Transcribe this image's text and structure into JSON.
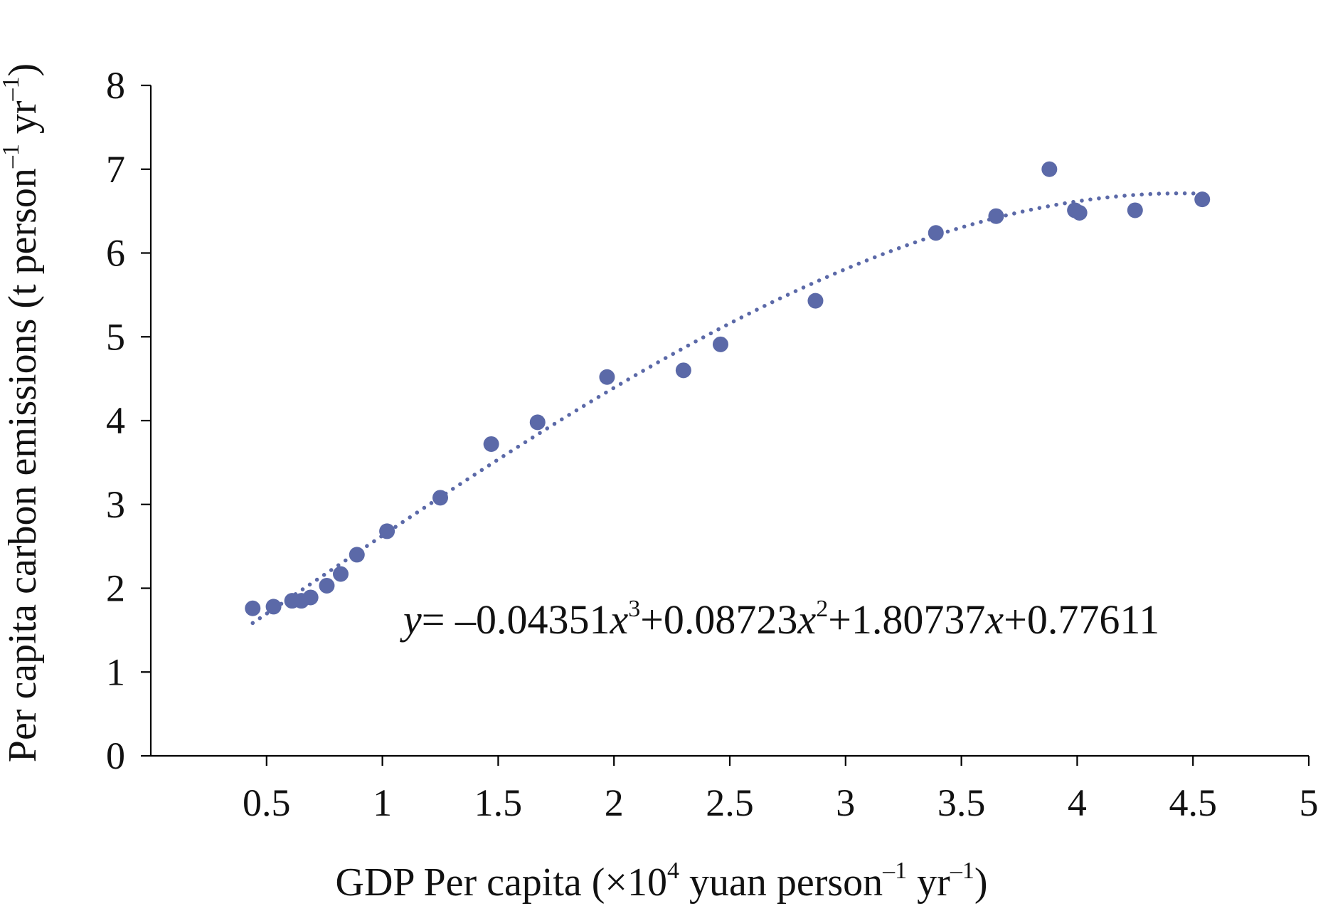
{
  "chart_data": {
    "type": "scatter",
    "xlabel": {
      "prefix": "GDP Per capita (×10",
      "exp1": "4",
      "mid": " yuan person",
      "exp2": "–1",
      "mid2": " yr",
      "exp3": "–1",
      "suffix": ")"
    },
    "ylabel": {
      "prefix": "Per capita carbon emissions (t person",
      "exp1": "–1",
      "mid": " yr",
      "exp2": "–1",
      "suffix": ")"
    },
    "xlim": [
      0,
      5
    ],
    "ylim": [
      0,
      8
    ],
    "xticks": [
      0.5,
      1,
      1.5,
      2,
      2.5,
      3,
      3.5,
      4,
      4.5,
      5
    ],
    "xtick_labels": [
      "0.5",
      "1",
      "1.5",
      "2",
      "2.5",
      "3",
      "3.5",
      "4",
      "4.5",
      "5"
    ],
    "yticks": [
      0,
      1,
      2,
      3,
      4,
      5,
      6,
      7,
      8
    ],
    "ytick_labels": [
      "0",
      "1",
      "2",
      "3",
      "4",
      "5",
      "6",
      "7",
      "8"
    ],
    "grid": false,
    "point_color": "#5b69a8",
    "trend_color": "#5b69a8",
    "points": [
      {
        "x": 0.44,
        "y": 1.76
      },
      {
        "x": 0.53,
        "y": 1.78
      },
      {
        "x": 0.61,
        "y": 1.85
      },
      {
        "x": 0.65,
        "y": 1.85
      },
      {
        "x": 0.69,
        "y": 1.89
      },
      {
        "x": 0.76,
        "y": 2.03
      },
      {
        "x": 0.82,
        "y": 2.17
      },
      {
        "x": 0.89,
        "y": 2.4
      },
      {
        "x": 1.02,
        "y": 2.68
      },
      {
        "x": 1.25,
        "y": 3.08
      },
      {
        "x": 1.47,
        "y": 3.72
      },
      {
        "x": 1.67,
        "y": 3.98
      },
      {
        "x": 1.97,
        "y": 4.52
      },
      {
        "x": 2.3,
        "y": 4.6
      },
      {
        "x": 2.46,
        "y": 4.91
      },
      {
        "x": 2.87,
        "y": 5.43
      },
      {
        "x": 3.39,
        "y": 6.24
      },
      {
        "x": 3.65,
        "y": 6.44
      },
      {
        "x": 3.88,
        "y": 7.0
      },
      {
        "x": 3.99,
        "y": 6.51
      },
      {
        "x": 4.01,
        "y": 6.48
      },
      {
        "x": 4.25,
        "y": 6.51
      },
      {
        "x": 4.54,
        "y": 6.64
      }
    ],
    "trendline": {
      "type": "polynomial",
      "coefficients": [
        0.77611,
        1.80737,
        0.08723,
        -0.04351
      ],
      "x_range": [
        0.44,
        4.54
      ]
    },
    "equation": {
      "y": "y",
      "eq": "= –0.04351",
      "x1": "x",
      "e1": "3",
      "t2": "+0.08723",
      "x2": "x",
      "e2": "2",
      "t3": "+1.80737",
      "x3": "x",
      "t4": "+0.77611"
    }
  }
}
